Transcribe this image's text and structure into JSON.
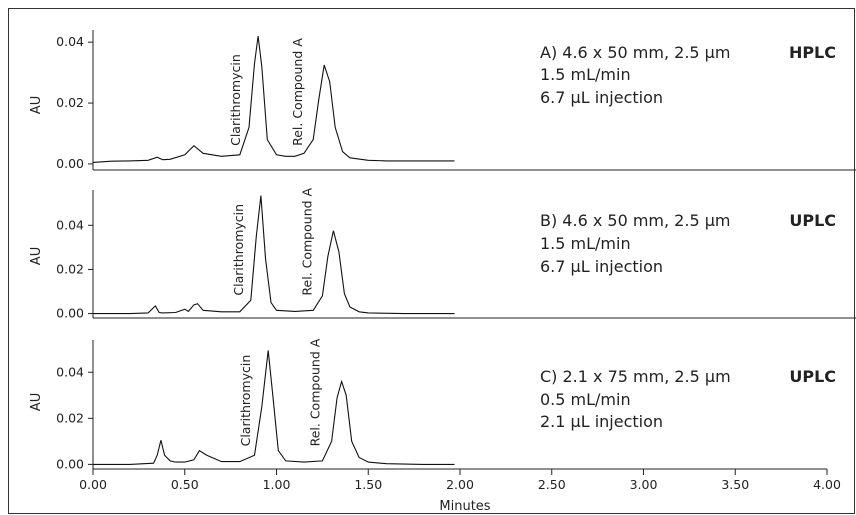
{
  "chart_data": {
    "type": "line",
    "xlabel": "Minutes",
    "x_ticks": [
      "0.00",
      "0.50",
      "1.00",
      "1.50",
      "2.00",
      "2.50",
      "3.00",
      "3.50",
      "4.00"
    ],
    "xlim": [
      0,
      4.0
    ],
    "panels": [
      {
        "ylabel": "AU",
        "y_ticks": [
          "0.00",
          "0.02",
          "0.04"
        ],
        "ylim": [
          -0.002,
          0.044
        ],
        "info_lines": [
          "A) 4.6 x 50 mm, 2.5 µm",
          "1.5 mL/min",
          "6.7 µL injection"
        ],
        "mode": "HPLC",
        "peak_labels": [
          "Clarithromycin",
          "Rel. Compound A"
        ],
        "series": [
          {
            "name": "Clarithromycin",
            "x": [
              0.0,
              0.1,
              0.2,
              0.3,
              0.35,
              0.38,
              0.42,
              0.5,
              0.55,
              0.6,
              0.7,
              0.8,
              0.85,
              0.88,
              0.9,
              0.92,
              0.95,
              1.0,
              1.05,
              1.1,
              1.15,
              1.2,
              1.23,
              1.26,
              1.29,
              1.32,
              1.36,
              1.4,
              1.5,
              1.6,
              1.8,
              1.97
            ],
            "y": [
              0.0005,
              0.0009,
              0.001,
              0.0012,
              0.0022,
              0.0014,
              0.0015,
              0.003,
              0.006,
              0.0035,
              0.0025,
              0.003,
              0.012,
              0.033,
              0.042,
              0.032,
              0.008,
              0.003,
              0.0025,
              0.0025,
              0.0035,
              0.008,
              0.021,
              0.0325,
              0.027,
              0.012,
              0.004,
              0.002,
              0.0012,
              0.001,
              0.001,
              0.001
            ]
          }
        ]
      },
      {
        "ylabel": "AU",
        "y_ticks": [
          "0.00",
          "0.02",
          "0.04"
        ],
        "ylim": [
          -0.002,
          0.056
        ],
        "info_lines": [
          "B) 4.6 x 50 mm, 2.5 µm",
          "1.5 mL/min",
          "6.7 µL injection"
        ],
        "mode": "UPLC",
        "peak_labels": [
          "Clarithromycin",
          "Rel. Compound A"
        ],
        "series": [
          {
            "name": "Clarithromycin",
            "x": [
              0.0,
              0.2,
              0.3,
              0.34,
              0.36,
              0.38,
              0.45,
              0.5,
              0.52,
              0.55,
              0.57,
              0.6,
              0.7,
              0.8,
              0.86,
              0.89,
              0.915,
              0.94,
              0.97,
              1.0,
              1.1,
              1.2,
              1.25,
              1.28,
              1.31,
              1.34,
              1.37,
              1.4,
              1.45,
              1.5,
              1.7,
              1.97
            ],
            "y": [
              0.0,
              0.0,
              0.0003,
              0.0035,
              0.0005,
              0.0003,
              0.0005,
              0.002,
              0.001,
              0.004,
              0.0045,
              0.0015,
              0.0008,
              0.0008,
              0.006,
              0.035,
              0.0535,
              0.025,
              0.005,
              0.0015,
              0.001,
              0.0015,
              0.008,
              0.026,
              0.0375,
              0.028,
              0.009,
              0.003,
              0.0008,
              0.0003,
              0.0,
              0.0
            ]
          }
        ]
      },
      {
        "ylabel": "AU",
        "y_ticks": [
          "0.00",
          "0.02",
          "0.04"
        ],
        "ylim": [
          -0.002,
          0.054
        ],
        "info_lines": [
          "C) 2.1 x 75 mm, 2.5 µm",
          "0.5 mL/min",
          "2.1 µL injection"
        ],
        "mode": "UPLC",
        "peak_labels": [
          "Clarithromycin",
          "Rel. Compound A"
        ],
        "series": [
          {
            "name": "Clarithromycin",
            "x": [
              0.0,
              0.2,
              0.33,
              0.35,
              0.37,
              0.39,
              0.42,
              0.45,
              0.5,
              0.55,
              0.58,
              0.62,
              0.7,
              0.8,
              0.88,
              0.92,
              0.955,
              0.98,
              1.01,
              1.05,
              1.15,
              1.25,
              1.3,
              1.33,
              1.355,
              1.38,
              1.41,
              1.45,
              1.5,
              1.6,
              1.8,
              1.97
            ],
            "y": [
              0.0,
              0.0,
              0.0005,
              0.004,
              0.0105,
              0.004,
              0.0015,
              0.001,
              0.001,
              0.002,
              0.006,
              0.004,
              0.0012,
              0.0012,
              0.004,
              0.025,
              0.0495,
              0.03,
              0.006,
              0.0015,
              0.001,
              0.0015,
              0.01,
              0.029,
              0.036,
              0.03,
              0.01,
              0.003,
              0.001,
              0.0003,
              0.0,
              0.0
            ]
          }
        ]
      }
    ]
  }
}
